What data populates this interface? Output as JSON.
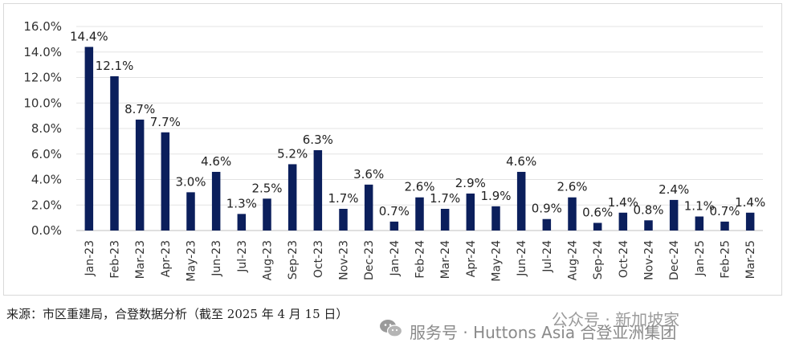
{
  "chart_data": {
    "type": "bar",
    "categories": [
      "Jan-23",
      "Feb-23",
      "Mar-23",
      "Apr-23",
      "May-23",
      "Jun-23",
      "Jul-23",
      "Aug-23",
      "Sep-23",
      "Oct-23",
      "Nov-23",
      "Dec-23",
      "Jan-24",
      "Feb-24",
      "Mar-24",
      "Apr-24",
      "May-24",
      "Jun-24",
      "Jul-24",
      "Aug-24",
      "Sep-24",
      "Oct-24",
      "Nov-24",
      "Dec-24",
      "Jan-25",
      "Feb-25",
      "Mar-25"
    ],
    "values": [
      14.4,
      12.1,
      8.7,
      7.7,
      3.0,
      4.6,
      1.3,
      2.5,
      5.2,
      6.3,
      1.7,
      3.6,
      0.7,
      2.6,
      1.7,
      2.9,
      1.9,
      4.6,
      0.9,
      2.6,
      0.6,
      1.4,
      0.8,
      2.4,
      1.1,
      0.7,
      1.4
    ],
    "data_labels": [
      "14.4%",
      "12.1%",
      "8.7%",
      "7.7%",
      "3.0%",
      "4.6%",
      "1.3%",
      "2.5%",
      "5.2%",
      "6.3%",
      "1.7%",
      "3.6%",
      "0.7%",
      "2.6%",
      "1.7%",
      "2.9%",
      "1.9%",
      "4.6%",
      "0.9%",
      "2.6%",
      "0.6%",
      "1.4%",
      "0.8%",
      "2.4%",
      "1.1%",
      "0.7%",
      "1.4%"
    ],
    "ylim": [
      0,
      16
    ],
    "y_ticks": [
      "0.0%",
      "2.0%",
      "4.0%",
      "6.0%",
      "8.0%",
      "10.0%",
      "12.0%",
      "14.0%",
      "16.0%"
    ],
    "grid": true,
    "bar_color": "#0b1f5c",
    "title": "",
    "xlabel": "",
    "ylabel": ""
  },
  "source_note": "来源：市区重建局，合登数据分析（截至 2025 年 4 月 15 日）",
  "watermark": {
    "line1": "公众号 · 新加坡家",
    "line2": "服务号 · Huttons Asia 合登亚洲集团",
    "icon": "wechat-icon"
  }
}
